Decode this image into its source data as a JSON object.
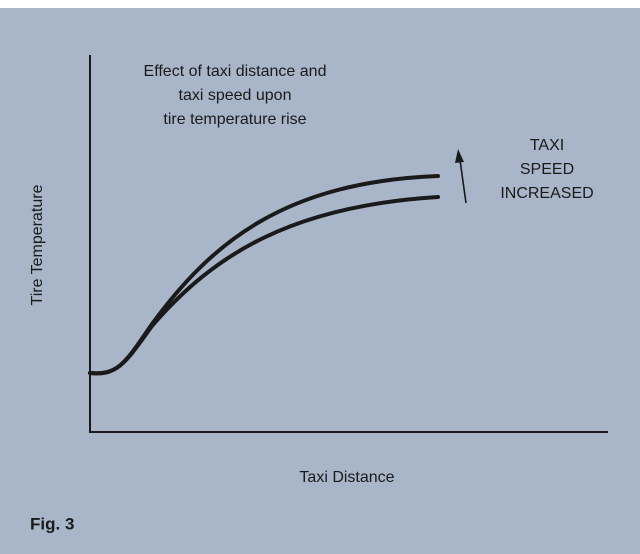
{
  "title_lines": [
    "Effect of taxi distance and",
    "taxi speed upon",
    "tire temperature rise"
  ],
  "y_axis_label": "Tire Temperature",
  "x_axis_label": "Taxi Distance",
  "annotation_lines": [
    "TAXI",
    "SPEED",
    "INCREASED"
  ],
  "figure_label": "Fig. 3"
}
